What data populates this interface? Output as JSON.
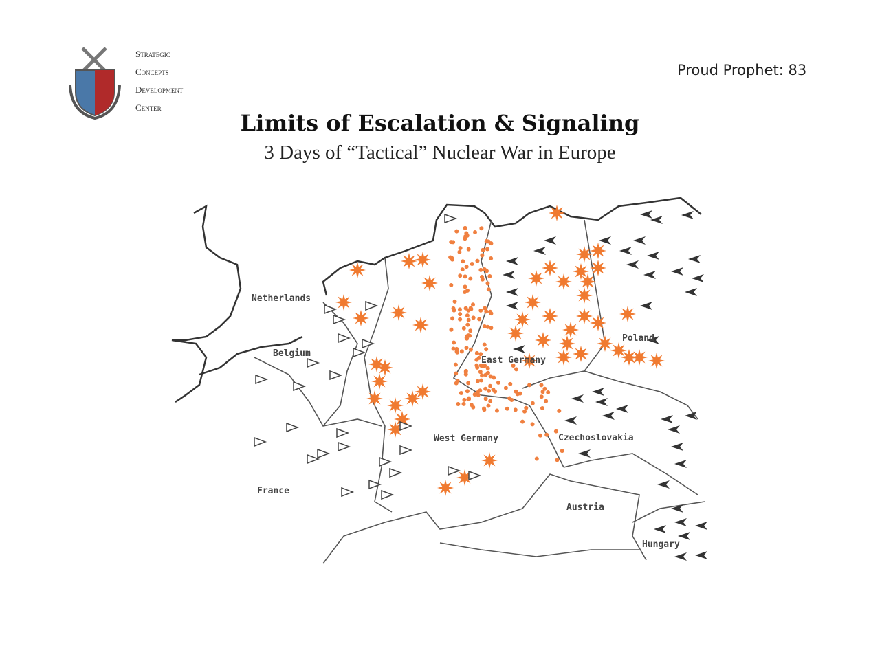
{
  "header": {
    "logo_lines": [
      "Strategic",
      "Concepts",
      "Development",
      "Center"
    ],
    "tag": "Proud Prophet: 83"
  },
  "title": "Limits of Escalation & Signaling",
  "subtitle": "3 Days of “Tactical” Nuclear War in Europe",
  "map": {
    "labels": [
      "Netherlands",
      "Belgium",
      "East Germany",
      "Poland",
      "West Germany",
      "Czechoslovakia",
      "France",
      "Austria",
      "Hungary"
    ]
  }
}
